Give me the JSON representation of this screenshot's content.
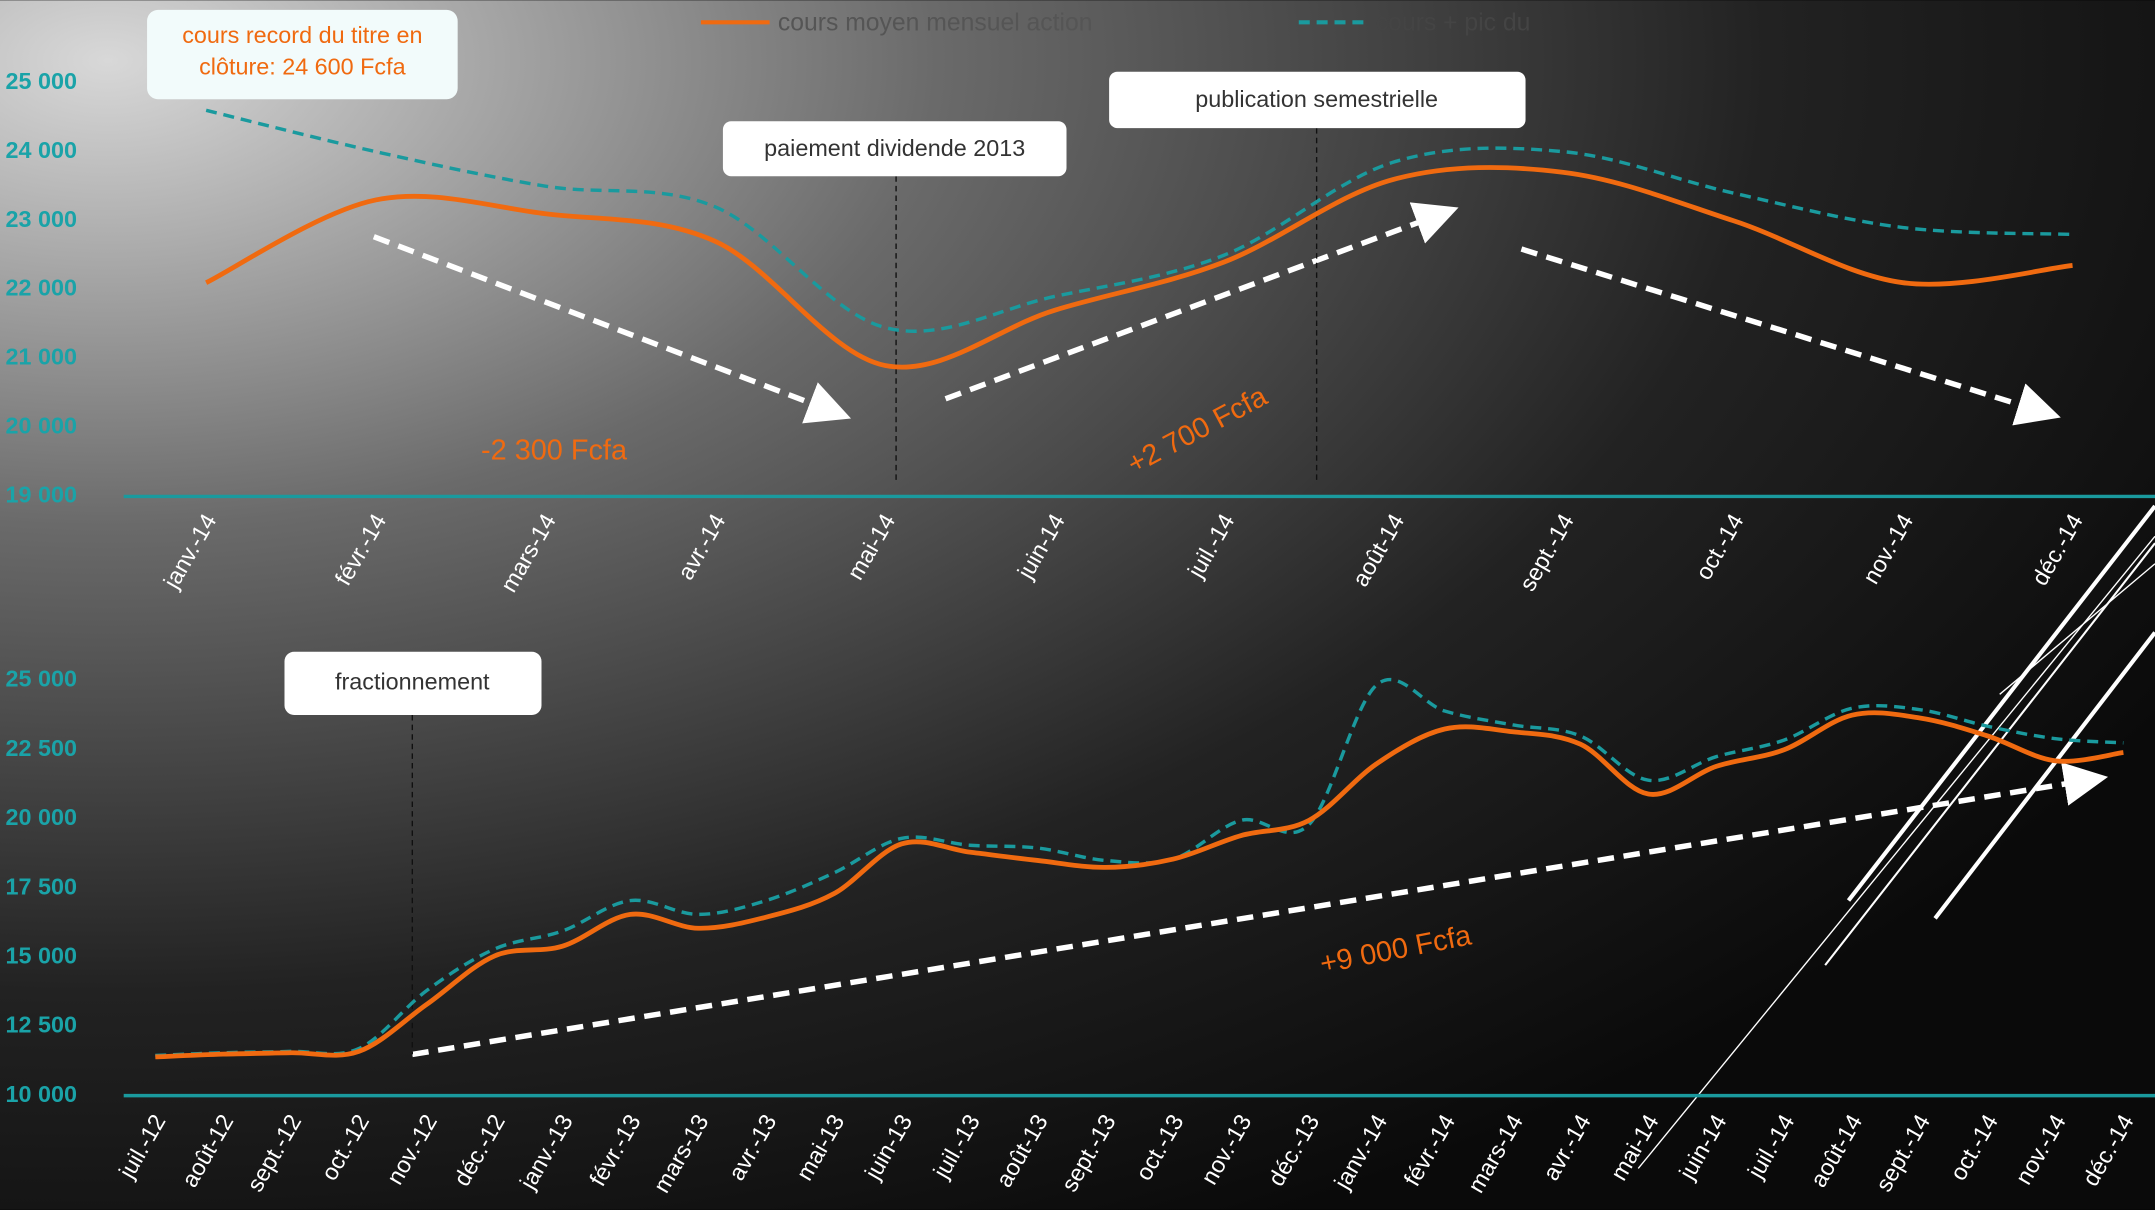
{
  "chart_data": [
    {
      "type": "line",
      "categories": [
        "janv.-14",
        "févr.-14",
        "mars-14",
        "avr.-14",
        "mai-14",
        "juin-14",
        "juil.-14",
        "août-14",
        "sept.-14",
        "oct.-14",
        "nov.-14",
        "déc.-14"
      ],
      "series": [
        {
          "name": "cours moyen mensuel action",
          "color": "#f06a10",
          "values": [
            22100,
            23300,
            23100,
            22700,
            20900,
            21700,
            22400,
            23600,
            23700,
            23000,
            22100,
            22350
          ]
        },
        {
          "name": "cours + pic du",
          "color": "#1a9a9e",
          "values": [
            24600,
            24000,
            23500,
            23200,
            21450,
            21900,
            22500,
            23850,
            24000,
            23400,
            22900,
            22800
          ]
        }
      ],
      "ylim": [
        19000,
        25000
      ],
      "yticks": [
        {
          "value": 19000,
          "label": "19 000"
        },
        {
          "value": 20000,
          "label": "20 000"
        },
        {
          "value": 21000,
          "label": "21 000"
        },
        {
          "value": 22000,
          "label": "22 000"
        },
        {
          "value": 23000,
          "label": "23 000"
        },
        {
          "value": 24000,
          "label": "24 000"
        },
        {
          "value": 25000,
          "label": "25 000"
        }
      ],
      "annotations": [
        "cours record du titre en clôture: 24 600 Fcfa",
        "paiement dividende 2013",
        "publication semestrielle",
        "-2 300 Fcfa",
        "+2 700 Fcfa"
      ]
    },
    {
      "type": "line",
      "categories": [
        "juil.-12",
        "août-12",
        "sept.-12",
        "oct.-12",
        "nov.-12",
        "déc.-12",
        "janv.-13",
        "févr.-13",
        "mars-13",
        "avr.-13",
        "mai-13",
        "juin-13",
        "juil.-13",
        "août-13",
        "sept.-13",
        "oct.-13",
        "nov.-13",
        "déc.-13",
        "janv.-14",
        "févr.-14",
        "mars-14",
        "avr.-14",
        "mai-14",
        "juin-14",
        "juil.-14",
        "août-14",
        "sept.-14",
        "oct.-14",
        "nov.-14",
        "déc.-14"
      ],
      "series": [
        {
          "name": "cours moyen mensuel action",
          "color": "#f06a10",
          "values": [
            11400,
            11500,
            11550,
            11600,
            13300,
            15050,
            15400,
            16550,
            16050,
            16450,
            17300,
            19100,
            18800,
            18500,
            18250,
            18550,
            19400,
            19950,
            22000,
            23250,
            23150,
            22700,
            20900,
            21900,
            22500,
            23750,
            23650,
            23000,
            22100,
            22400
          ]
        },
        {
          "name": "cours + pic du",
          "color": "#1a9a9e",
          "values": [
            11450,
            11550,
            11600,
            11700,
            13800,
            15300,
            15950,
            17050,
            16550,
            17050,
            18050,
            19300,
            19050,
            18950,
            18500,
            18550,
            19950,
            19800,
            24850,
            23900,
            23400,
            23000,
            21400,
            22250,
            22850,
            24000,
            23950,
            23350,
            22900,
            22750
          ]
        }
      ],
      "ylim": [
        10000,
        25000
      ],
      "yticks": [
        {
          "value": 10000,
          "label": "10 000"
        },
        {
          "value": 12500,
          "label": "12 500"
        },
        {
          "value": 15000,
          "label": "15 000"
        },
        {
          "value": 17500,
          "label": "17 500"
        },
        {
          "value": 20000,
          "label": "20 000"
        },
        {
          "value": 22500,
          "label": "22 500"
        },
        {
          "value": 25000,
          "label": "25 000"
        }
      ],
      "annotations": [
        "fractionnement",
        "+9 000 Fcfa"
      ]
    }
  ]
}
